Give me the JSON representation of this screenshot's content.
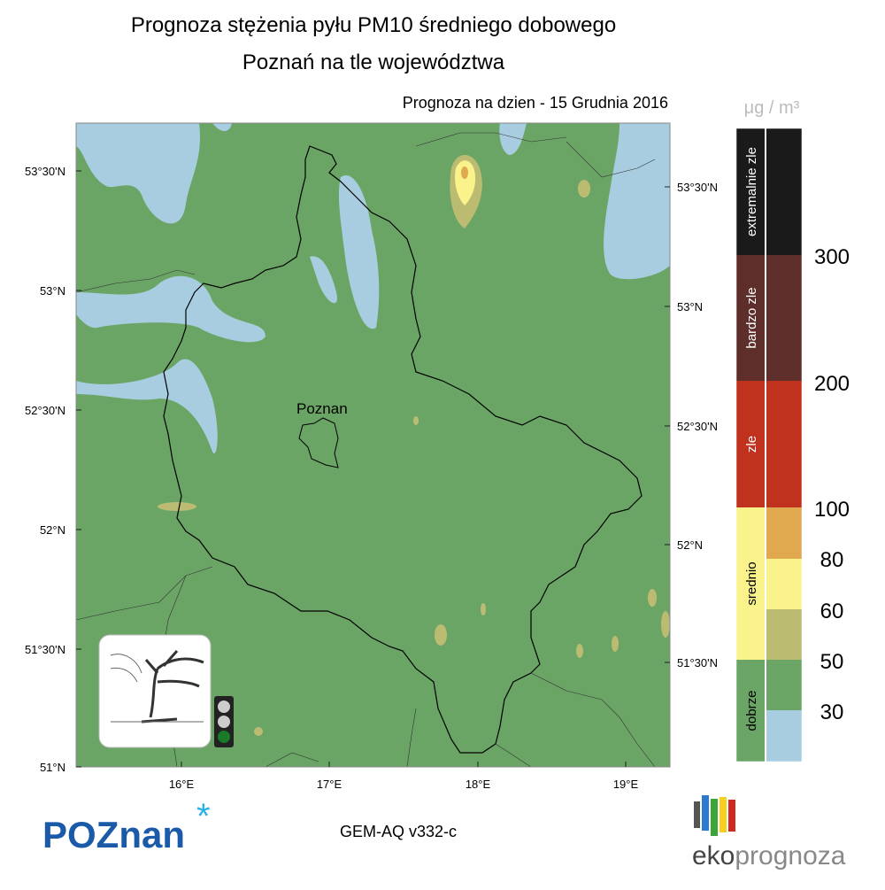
{
  "title": "Prognoza stężenia pyłu PM10 średniego dobowego",
  "subtitle": "Poznań na tle województwa",
  "forecast_label": "Prognoza na dzien -  15 Grudnia 2016",
  "map": {
    "city_label": "Poznan",
    "lat_labels_left": [
      "53°30'N",
      "53°N",
      "52°30'N",
      "52°N",
      "51°30'N",
      "51°N"
    ],
    "lat_labels_right": [
      "53°30'N",
      "53°N",
      "52°30'N",
      "52°N",
      "51°30'N"
    ],
    "lon_labels": [
      "16°E",
      "17°E",
      "18°E",
      "19°E"
    ]
  },
  "legend": {
    "unit": "μg / m³",
    "categories": [
      "extremalnie zle",
      "bardzo zle",
      "zle",
      "srednio",
      "dobrze"
    ],
    "thresholds": [
      300,
      200,
      100,
      80,
      60,
      50,
      30
    ]
  },
  "footer": {
    "logo_left": "POZnan",
    "model": "GEM-AQ v332-c",
    "logo_right_1": "eko",
    "logo_right_2": "prognoza"
  }
}
